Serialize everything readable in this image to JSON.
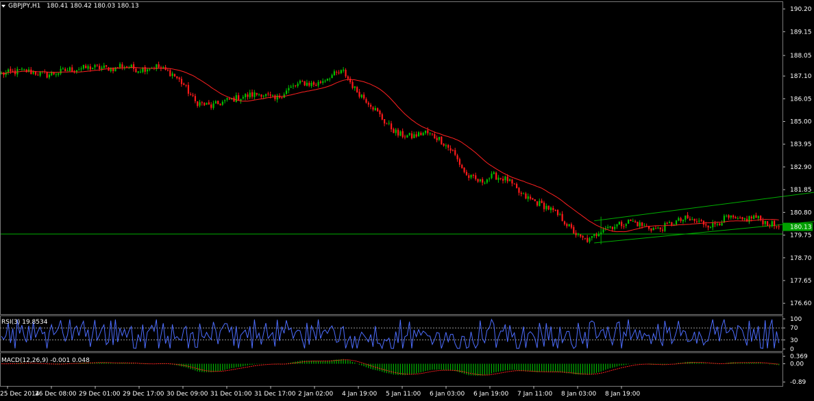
{
  "header": {
    "symbol_label": "GBPJPY,H1",
    "ohlc_label": "180.41 180.42 180.03 180.13"
  },
  "price_marker": {
    "label": "180.13",
    "value": 180.13,
    "color": "#00a000"
  },
  "indicators": {
    "rsi_label": "RSI(3) 19.8534",
    "macd_label": "MACD(12,26,9) -0.001 0.048"
  },
  "colors": {
    "background": "#000000",
    "bull_candle": "#00c000",
    "bear_candle": "#ff1a1a",
    "moving_average": "#ff2020",
    "channel_lines": "#00b000",
    "rsi_line": "#4d6dff",
    "macd_histogram": "#00b800",
    "macd_signal": "#ff2020"
  },
  "chart_data": [
    {
      "type": "candlestick",
      "title": "GBPJPY,H1",
      "ylim": [
        176.1,
        190.55
      ],
      "y_ticks": [
        "190.20",
        "189.15",
        "188.05",
        "187.10",
        "186.05",
        "185.00",
        "183.95",
        "182.90",
        "181.85",
        "180.80",
        "179.75",
        "178.70",
        "177.65",
        "176.60"
      ],
      "x_ticks": [
        "25 Dec 2014",
        "26 Dec 08:00",
        "29 Dec 01:00",
        "29 Dec 17:00",
        "30 Dec 09:00",
        "31 Dec 01:00",
        "31 Dec 17:00",
        "2 Jan 02:00",
        "4 Jan 19:00",
        "5 Jan 11:00",
        "6 Jan 03:00",
        "6 Jan 19:00",
        "7 Jan 11:00",
        "8 Jan 03:00",
        "8 Jan 19:00"
      ],
      "horizontal_line": 179.8,
      "path_anchors": [
        [
          0,
          187.2
        ],
        [
          10,
          187.35
        ],
        [
          20,
          187.15
        ],
        [
          30,
          187.4
        ],
        [
          40,
          187.5
        ],
        [
          50,
          187.45
        ],
        [
          52,
          187.6
        ],
        [
          60,
          187.4
        ],
        [
          68,
          187.55
        ],
        [
          75,
          187.2
        ],
        [
          80,
          186.7
        ],
        [
          85,
          185.9
        ],
        [
          92,
          185.7
        ],
        [
          100,
          186.0
        ],
        [
          108,
          186.2
        ],
        [
          114,
          186.3
        ],
        [
          120,
          186.0
        ],
        [
          126,
          186.5
        ],
        [
          132,
          186.8
        ],
        [
          138,
          186.7
        ],
        [
          144,
          187.1
        ],
        [
          150,
          187.3
        ],
        [
          155,
          186.5
        ],
        [
          162,
          185.8
        ],
        [
          168,
          185.0
        ],
        [
          174,
          184.4
        ],
        [
          180,
          184.3
        ],
        [
          186,
          184.5
        ],
        [
          192,
          184.2
        ],
        [
          198,
          183.6
        ],
        [
          204,
          182.5
        ],
        [
          210,
          182.2
        ],
        [
          216,
          182.5
        ],
        [
          222,
          182.3
        ],
        [
          228,
          181.6
        ],
        [
          234,
          181.3
        ],
        [
          240,
          181.0
        ],
        [
          246,
          180.5
        ],
        [
          250,
          180.0
        ],
        [
          254,
          179.6
        ],
        [
          258,
          179.5
        ],
        [
          264,
          180.1
        ],
        [
          270,
          180.2
        ],
        [
          276,
          180.4
        ],
        [
          282,
          180.15
        ],
        [
          288,
          180.0
        ],
        [
          294,
          180.3
        ],
        [
          300,
          180.5
        ],
        [
          306,
          180.35
        ],
        [
          312,
          180.2
        ],
        [
          318,
          180.55
        ],
        [
          324,
          180.4
        ],
        [
          330,
          180.6
        ],
        [
          336,
          180.3
        ],
        [
          341,
          180.13
        ]
      ],
      "ma_period": 24,
      "channel_lines": [
        {
          "from": [
            260,
            180.41
          ],
          "to": [
            420,
            182.59
          ]
        },
        {
          "from": [
            260,
            179.39
          ],
          "to": [
            420,
            181.03
          ]
        }
      ],
      "channel_box": {
        "from": [
          263,
          180.35
        ],
        "to": [
          296,
          180.45
        ]
      }
    },
    {
      "type": "line",
      "title": "RSI(3) 19.8534",
      "ylim": [
        0,
        100
      ],
      "y_ticks": [
        "100",
        "70",
        "30",
        "0"
      ],
      "levels": [
        70,
        30
      ],
      "last_value": 19.8534
    },
    {
      "type": "bar",
      "title": "MACD(12,26,9) -0.001 0.048",
      "y_ticks": [
        "0.369",
        "0.00",
        "-0.89"
      ],
      "ylim": [
        -0.95,
        0.42
      ],
      "params": [
        12,
        26,
        9
      ],
      "last_macd": -0.001,
      "last_signal": 0.048
    }
  ]
}
